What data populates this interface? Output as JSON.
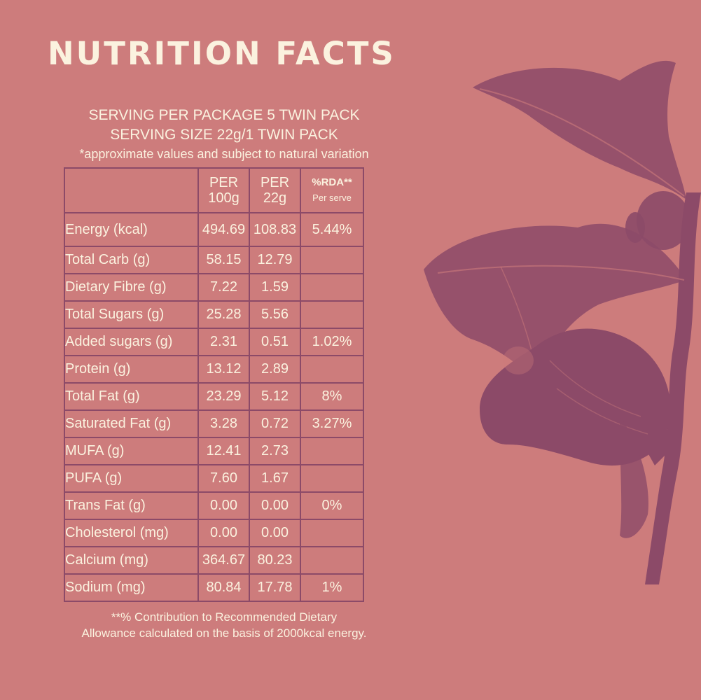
{
  "title": "NUTRITION FACTS",
  "serving": {
    "per_package": "SERVING PER PACKAGE 5 TWIN PACK",
    "size": "SERVING SIZE 22g/1 TWIN PACK",
    "note": "*approximate values and subject to natural variation"
  },
  "table": {
    "headers": {
      "per100_line1": "PER",
      "per100_line2": "100g",
      "per22_line1": "PER",
      "per22_line2": "22g",
      "rda_line1": "%RDA**",
      "rda_line2": "Per serve"
    },
    "rows": [
      {
        "name": "Energy (kcal)",
        "per100": "494.69",
        "per22": "108.83",
        "rda": "5.44%"
      },
      {
        "name": "Total Carb (g)",
        "per100": "58.15",
        "per22": "12.79",
        "rda": ""
      },
      {
        "name": "Dietary Fibre (g)",
        "per100": "7.22",
        "per22": "1.59",
        "rda": ""
      },
      {
        "name": "Total Sugars (g)",
        "per100": "25.28",
        "per22": "5.56",
        "rda": ""
      },
      {
        "name": "Added sugars (g)",
        "per100": "2.31",
        "per22": "0.51",
        "rda": "1.02%"
      },
      {
        "name": "Protein (g)",
        "per100": "13.12",
        "per22": "2.89",
        "rda": ""
      },
      {
        "name": "Total Fat (g)",
        "per100": "23.29",
        "per22": "5.12",
        "rda": "8%"
      },
      {
        "name": "Saturated Fat (g)",
        "per100": "3.28",
        "per22": "0.72",
        "rda": "3.27%"
      },
      {
        "name": "MUFA (g)",
        "per100": "12.41",
        "per22": "2.73",
        "rda": ""
      },
      {
        "name": "PUFA (g)",
        "per100": "7.60",
        "per22": "1.67",
        "rda": ""
      },
      {
        "name": "Trans Fat (g)",
        "per100": "0.00",
        "per22": "0.00",
        "rda": "0%"
      },
      {
        "name": "Cholesterol (mg)",
        "per100": "0.00",
        "per22": "0.00",
        "rda": ""
      },
      {
        "name": "Calcium (mg)",
        "per100": "364.67",
        "per22": "80.23",
        "rda": ""
      },
      {
        "name": "Sodium (mg)",
        "per100": "80.84",
        "per22": "17.78",
        "rda": "1%"
      }
    ]
  },
  "footer": {
    "line1": "**% Contribution to Recommended Dietary",
    "line2": "Allowance calculated on the basis of 2000kcal energy."
  },
  "illustration": {
    "icon": "fig-branch-illustration",
    "color": "#8c4a68"
  },
  "colors": {
    "background": "#cd7c7c",
    "text": "#fbf2df",
    "rule": "#8c4a68"
  }
}
